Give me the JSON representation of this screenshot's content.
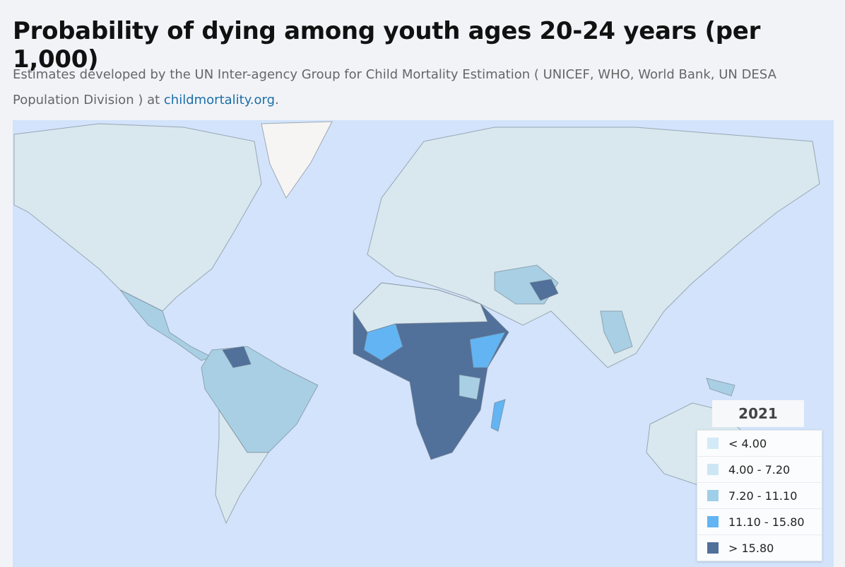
{
  "header": {
    "title": "Probability of dying among youth ages 20-24 years (per 1,000)",
    "subtitle": {
      "text": "Estimates developed by the UN Inter-agency Group for Child Mortality Estimation ( UNICEF, WHO, World Bank, UN DESA Population Division ) at ",
      "link": "childmortality.org",
      "end": "."
    }
  },
  "legend": {
    "year": "2021",
    "items": [
      {
        "label": "< 4.00",
        "color": "#d3eaf8"
      },
      {
        "label": "4.00 - 7.20",
        "color": "#cde6f4"
      },
      {
        "label": "7.20 - 11.10",
        "color": "#9fcfe8"
      },
      {
        "label": "11.10 - 15.80",
        "color": "#63b4f2"
      },
      {
        "label": "> 15.80",
        "color": "#51709a"
      }
    ]
  }
}
